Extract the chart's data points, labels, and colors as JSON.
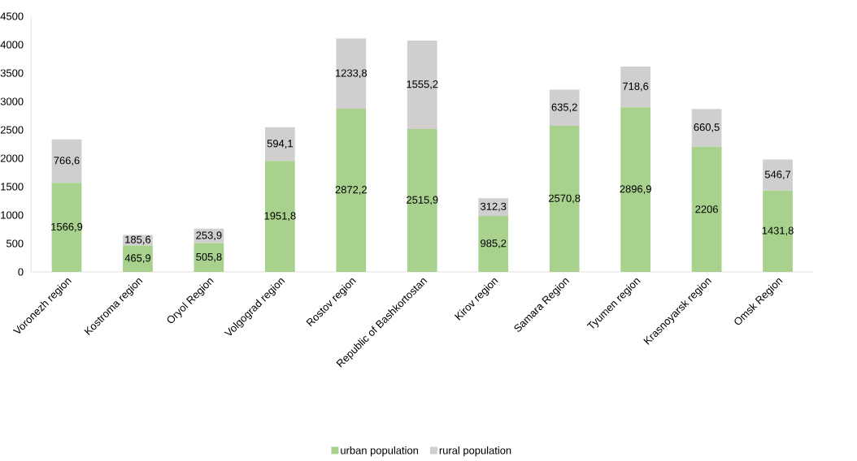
{
  "chart_data": {
    "type": "bar",
    "stacked": true,
    "categories": [
      "Voronezh region",
      "Kostroma region",
      "Oryol Region",
      "Volgograd region",
      "Rostov region",
      "Republic of Bashkortostan",
      "Kirov region",
      "Samara Region",
      "Tyumen region",
      "Krasnoyarsk region",
      "Omsk Region"
    ],
    "series": [
      {
        "name": "urban population",
        "color": "#a9d18e",
        "values": [
          1566.9,
          465.9,
          505.8,
          1951.8,
          2872.2,
          2515.9,
          985.2,
          2570.8,
          2896.9,
          2206,
          1431.8
        ],
        "value_labels": [
          "1566,9",
          "465,9",
          "505,8",
          "1951,8",
          "2872,2",
          "2515,9",
          "985,2",
          "2570,8",
          "2896,9",
          "2206",
          "1431,8"
        ]
      },
      {
        "name": "rural population",
        "color": "#d0cece",
        "values": [
          766.6,
          185.6,
          253.9,
          594.1,
          1233.8,
          1555.2,
          312.3,
          635.2,
          718.6,
          660.5,
          546.7
        ],
        "value_labels": [
          "766,6",
          "185,6",
          "253,9",
          "594,1",
          "1233,8",
          "1555,2",
          "312,3",
          "635,2",
          "718,6",
          "660,5",
          "546,7"
        ]
      }
    ],
    "ylim": [
      0,
      4500
    ],
    "yticks": [
      0,
      500,
      1000,
      1500,
      2000,
      2500,
      3000,
      3500,
      4000,
      4500
    ],
    "legend": "bottom"
  }
}
